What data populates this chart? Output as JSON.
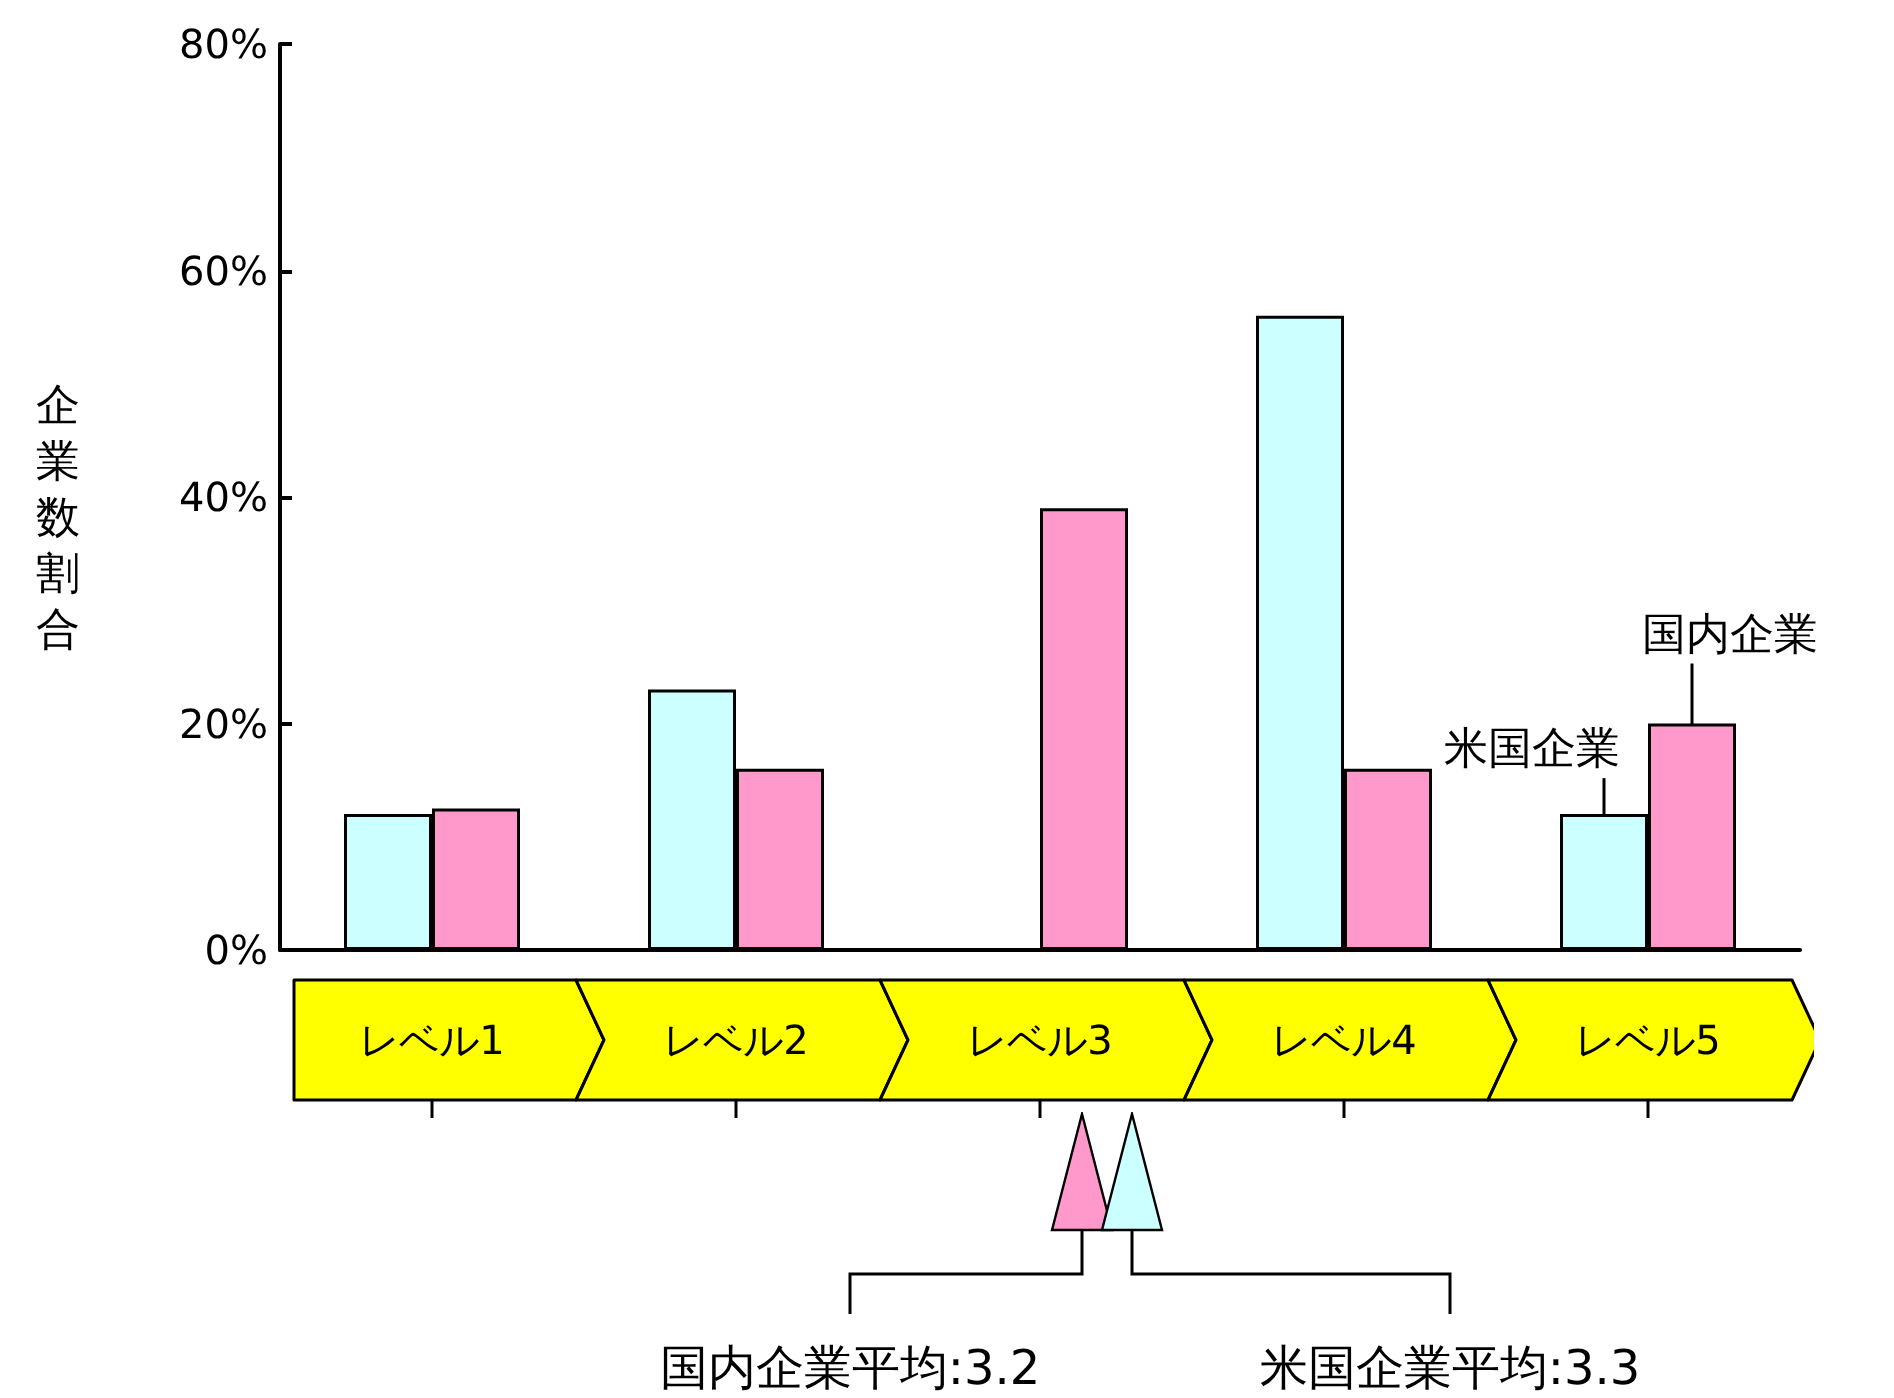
{
  "chart_data": {
    "type": "bar",
    "ylabel": "企業数割合",
    "categories": [
      "レベル1",
      "レベル2",
      "レベル3",
      "レベル4",
      "レベル5"
    ],
    "series": [
      {
        "name": "米国企業",
        "color": "#ccffff",
        "values": [
          12,
          23,
          null,
          56,
          12
        ]
      },
      {
        "name": "国内企業",
        "color": "#ff99cc",
        "values": [
          12.5,
          16,
          39,
          16,
          20
        ]
      }
    ],
    "ylim": [
      0,
      80
    ],
    "yticks": [
      {
        "value": 0,
        "label": "0%"
      },
      {
        "value": 20,
        "label": "20%"
      },
      {
        "value": 40,
        "label": "40%"
      },
      {
        "value": 60,
        "label": "60%"
      },
      {
        "value": 80,
        "label": "80%"
      }
    ],
    "grid": false,
    "legend": false,
    "annotations": [
      "国内企業平均:3.2",
      "米国企業平均:3.3"
    ]
  }
}
